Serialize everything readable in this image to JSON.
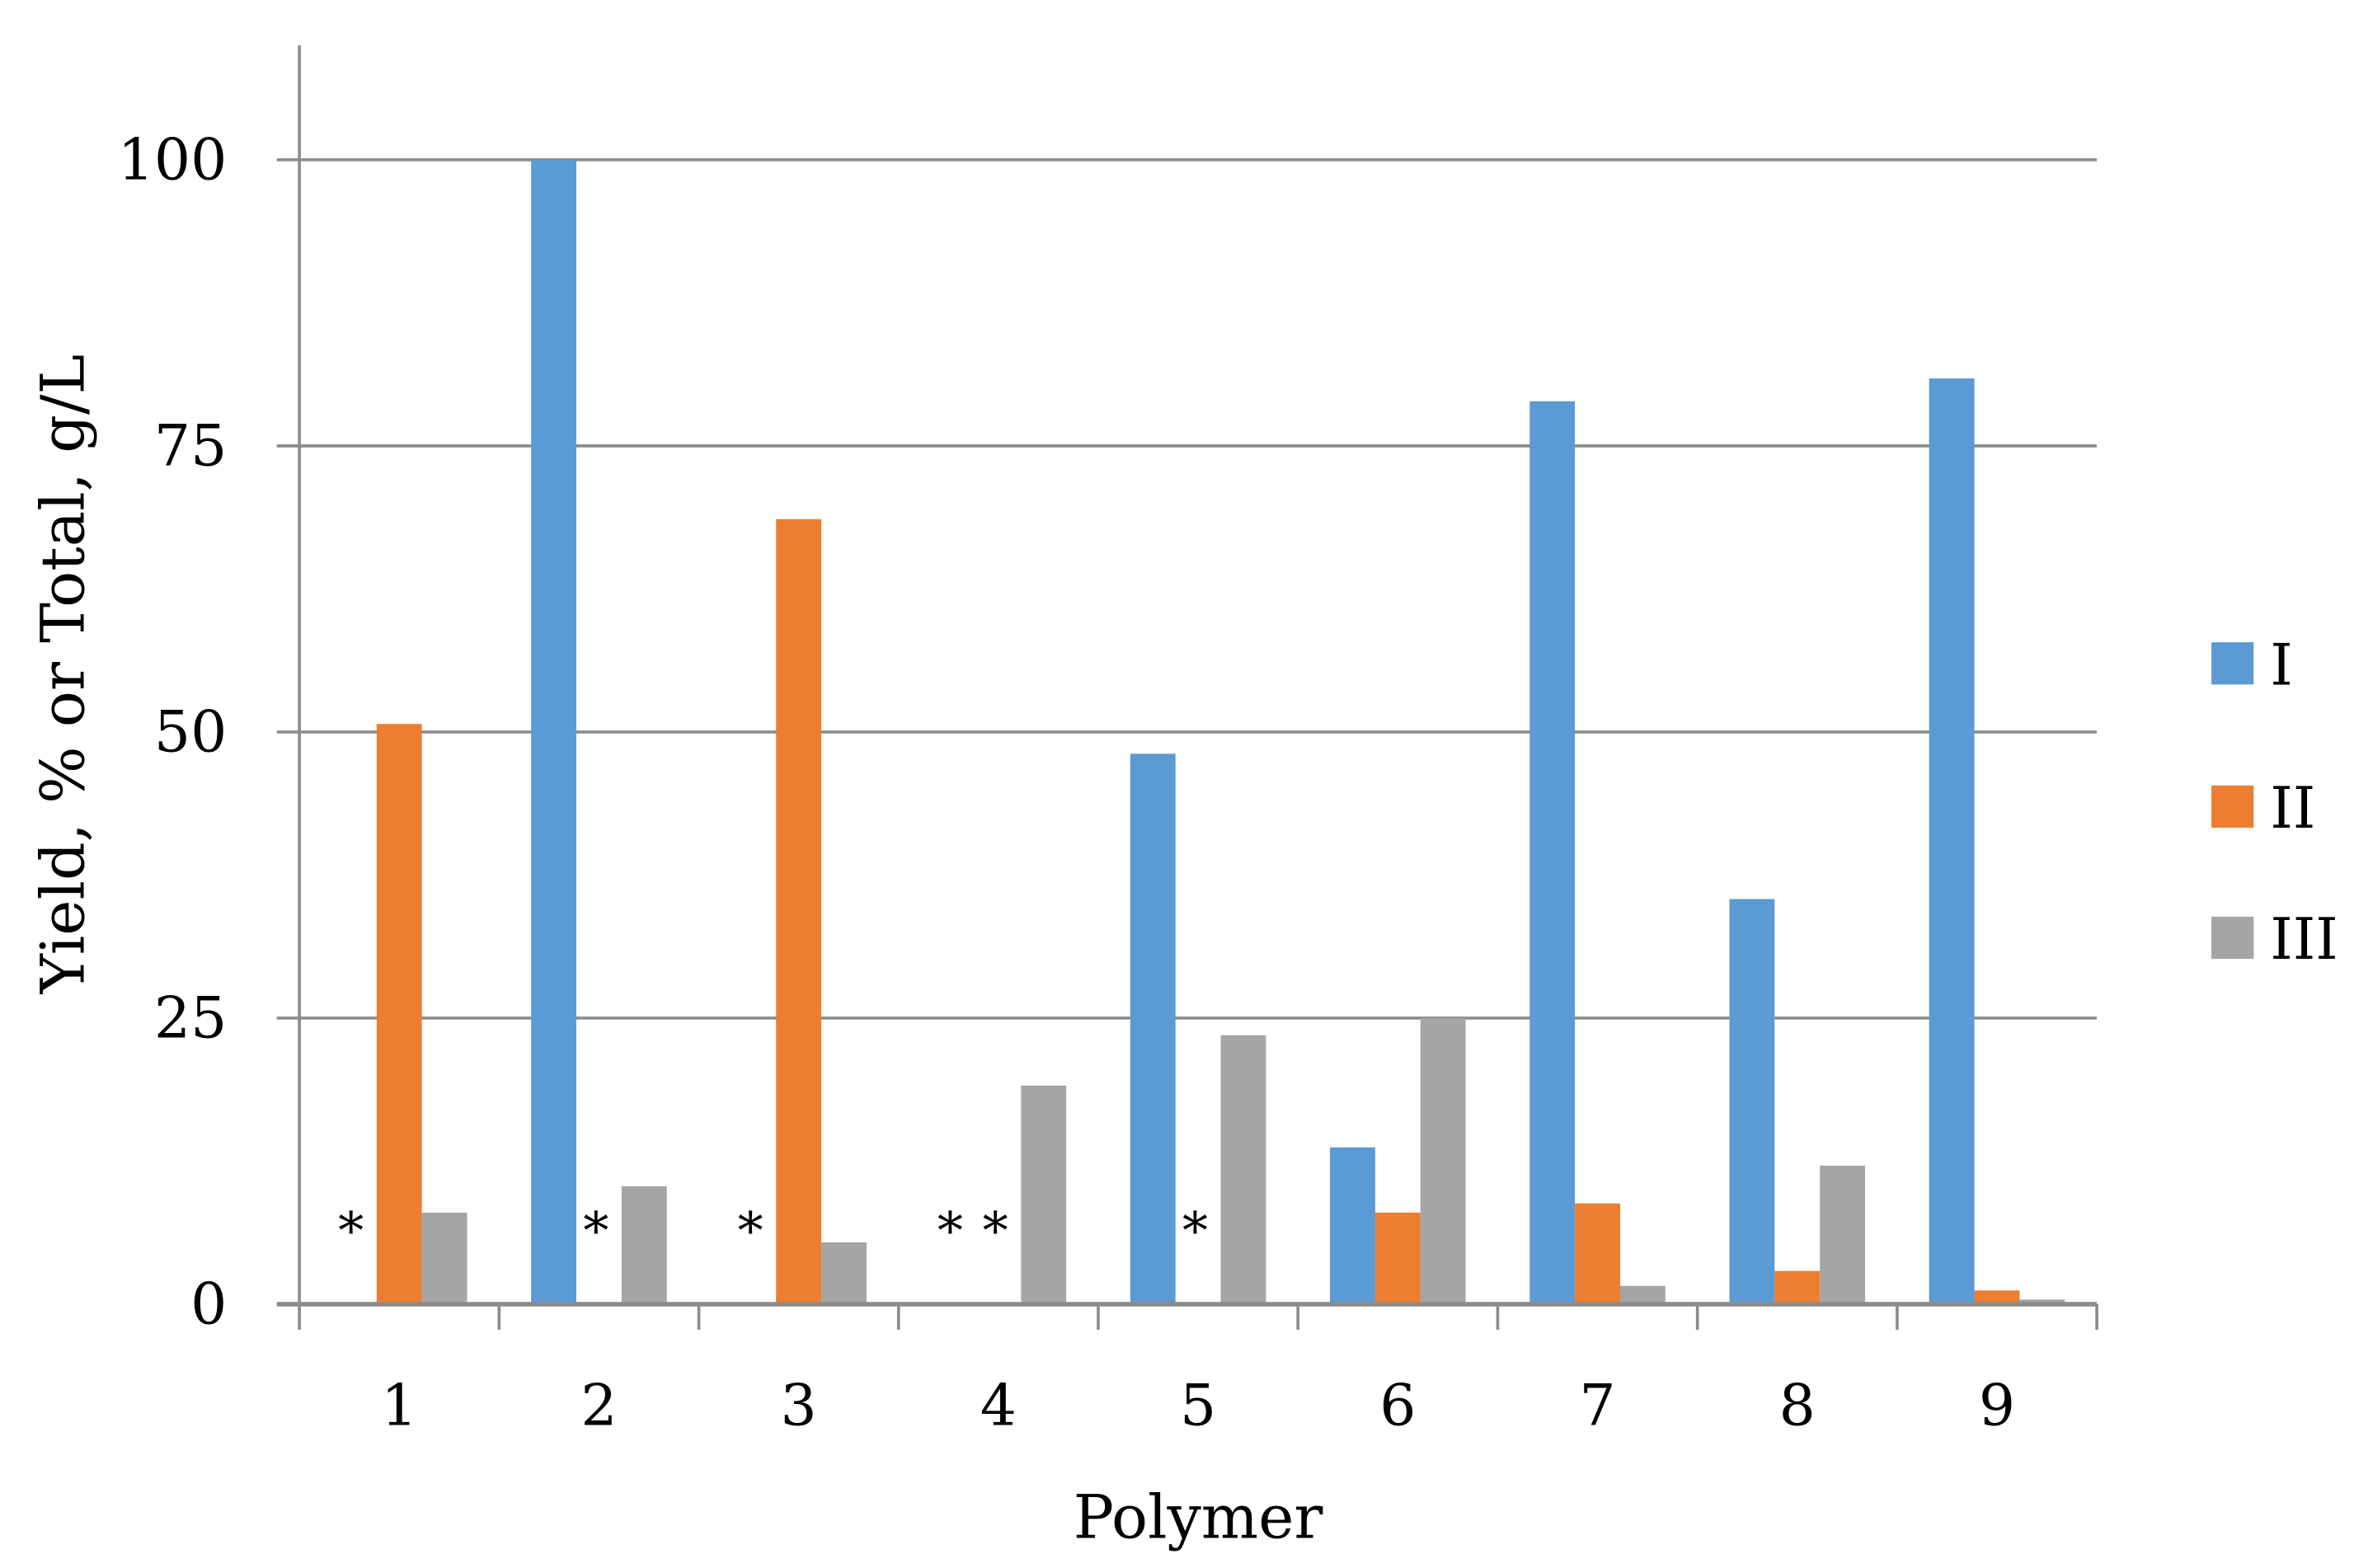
{
  "chart_data": {
    "type": "bar",
    "title": "",
    "xlabel": "Polymer",
    "ylabel": "Yield, % or Total, g/L",
    "ylim": [
      0,
      110
    ],
    "yticks": [
      "0",
      "25",
      "50",
      "75",
      "100"
    ],
    "ytick_values": [
      0,
      25,
      50,
      75,
      100
    ],
    "grid": true,
    "legend_position": "right",
    "categories": [
      "1",
      "2",
      "3",
      "4",
      "5",
      "6",
      "7",
      "8",
      "9"
    ],
    "series": [
      {
        "name": "I",
        "color": "#5B9BD5",
        "values": [
          0,
          100,
          0,
          0,
          48.1,
          13.7,
          78.9,
          35.4,
          80.9
        ]
      },
      {
        "name": "II",
        "color": "#ED7D31",
        "values": [
          50.7,
          0,
          68.6,
          0,
          0,
          8.0,
          8.8,
          2.9,
          1.2
        ]
      },
      {
        "name": "III",
        "color": "#A5A5A5",
        "values": [
          8.0,
          10.3,
          5.4,
          19.1,
          23.5,
          25.0,
          1.6,
          12.1,
          0.4
        ]
      }
    ],
    "annotations": [
      {
        "text": "*",
        "category": "1",
        "series": "I"
      },
      {
        "text": "*",
        "category": "2",
        "series": "II"
      },
      {
        "text": "*",
        "category": "3",
        "series": "I"
      },
      {
        "text": "*",
        "category": "4",
        "series": "I"
      },
      {
        "text": "*",
        "category": "4",
        "series": "II"
      },
      {
        "text": "*",
        "category": "5",
        "series": "II"
      }
    ]
  }
}
